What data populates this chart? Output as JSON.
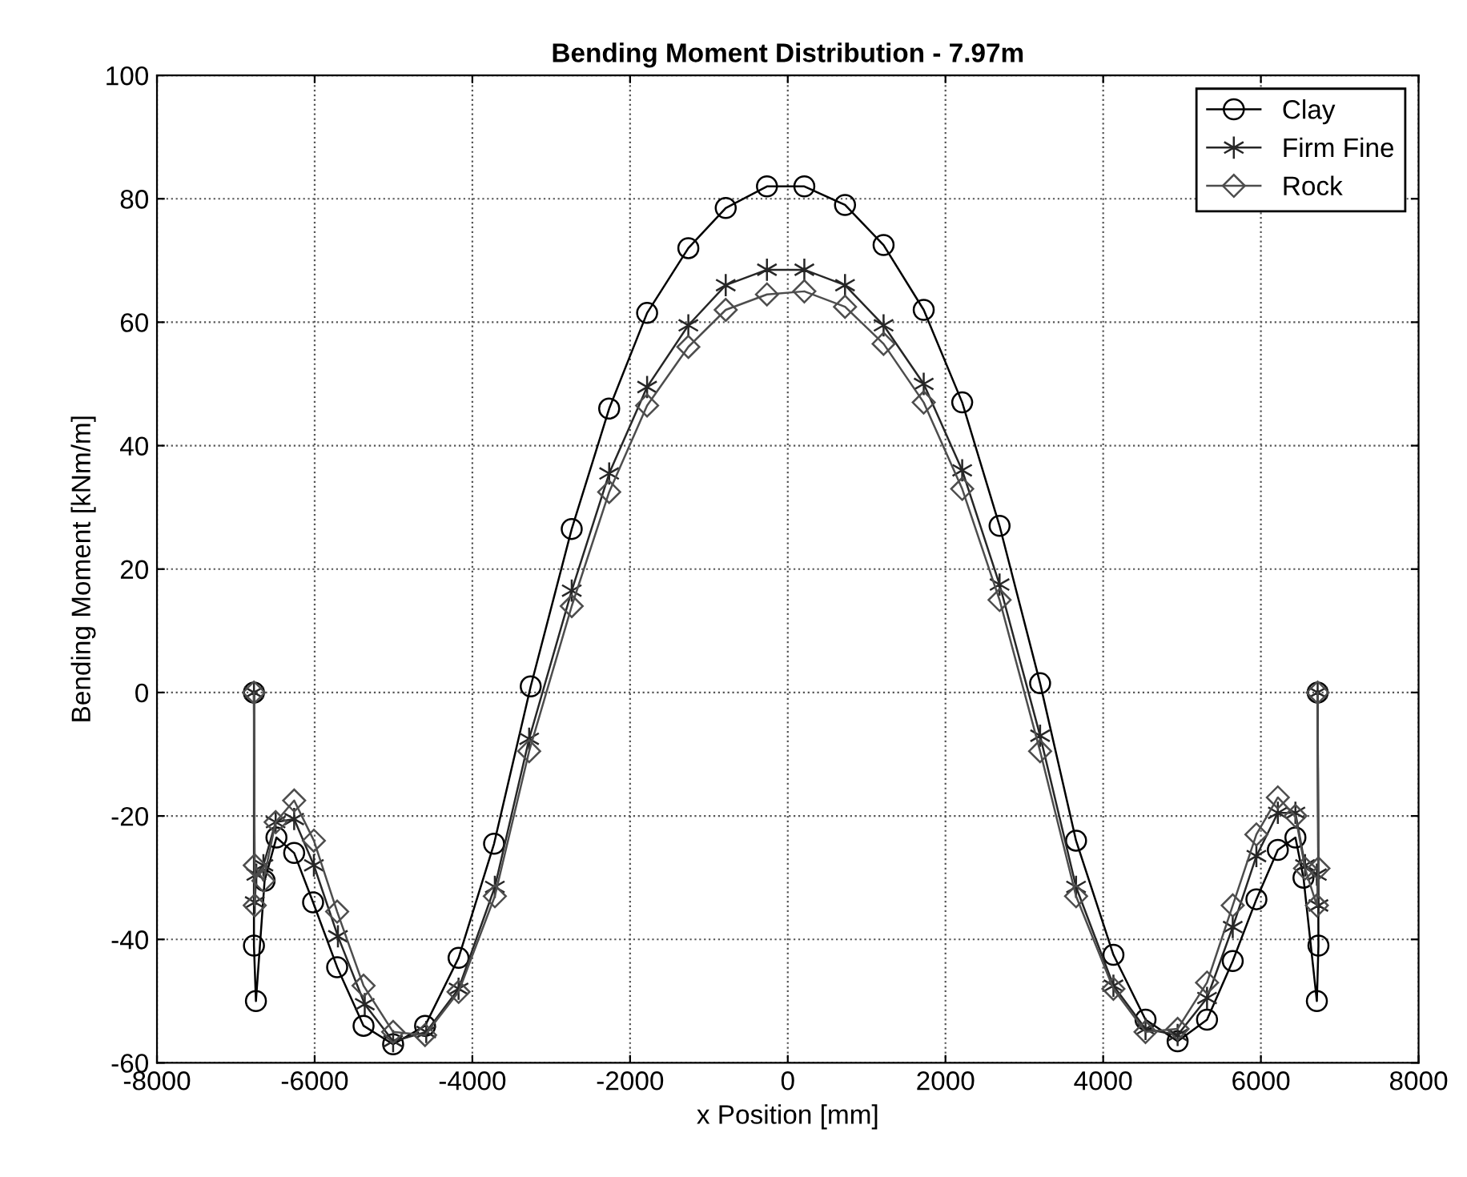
{
  "chart_data": {
    "type": "line",
    "title": "Bending Moment Distribution - 7.97m",
    "xlabel": "x Position [mm]",
    "ylabel": "Bending Moment [kNm/m]",
    "xlim": [
      -8000,
      8000
    ],
    "xticks": [
      -8000,
      -6000,
      -4000,
      -2000,
      0,
      2000,
      4000,
      6000,
      8000
    ],
    "ylim": [
      -60,
      100
    ],
    "yticks": [
      -60,
      -40,
      -20,
      0,
      20,
      40,
      60,
      80,
      100
    ],
    "grid": true,
    "legend": "top right",
    "line_style": "solid",
    "series": [
      {
        "name": "Clay",
        "color": "#000000",
        "marker": "circle",
        "x": [
          -6770,
          -6770,
          -6745,
          -6635,
          -6485,
          -6260,
          -6020,
          -5715,
          -5380,
          -5005,
          -4600,
          -4175,
          -3725,
          -3260,
          -2740,
          -2265,
          -1784,
          -1261,
          -787,
          -264,
          210,
          726,
          1215,
          1724,
          2212,
          2686,
          3200,
          3656,
          4130,
          4537,
          4944,
          5317,
          5643,
          5943,
          6215,
          6438,
          6540,
          6710,
          6730,
          6720
        ],
        "values": [
          0,
          -41,
          -50,
          -30.5,
          -23.5,
          -26,
          -34,
          -44.5,
          -54,
          -57,
          -54,
          -43,
          -24.5,
          1,
          26.5,
          46,
          61.5,
          72,
          78.5,
          82,
          82,
          79,
          72.5,
          62,
          47,
          27,
          1.5,
          -24,
          -42.5,
          -53,
          -56.5,
          -53,
          -43.5,
          -33.5,
          -25.5,
          -23.5,
          -30,
          -50,
          -41,
          0
        ]
      },
      {
        "name": "Firm Fine",
        "color": "#262626",
        "marker": "cross",
        "x": [
          -6770,
          -6760,
          -6740,
          -6650,
          -6495,
          -6260,
          -6010,
          -5705,
          -5365,
          -5005,
          -4585,
          -4175,
          -3715,
          -3280,
          -2740,
          -2265,
          -1784,
          -1261,
          -787,
          -264,
          210,
          726,
          1215,
          1724,
          2212,
          2686,
          3200,
          3656,
          4130,
          4537,
          4944,
          5317,
          5643,
          5943,
          6215,
          6438,
          6560,
          6710,
          6730,
          6720
        ],
        "values": [
          0,
          -34,
          -29.5,
          -28,
          -21,
          -20.5,
          -28,
          -39.5,
          -50.5,
          -56.5,
          -55,
          -48,
          -31.5,
          -7.5,
          16.5,
          35.5,
          49.5,
          59.5,
          66,
          68.5,
          68.5,
          66,
          59.5,
          50,
          36,
          17.5,
          -7,
          -31.5,
          -47.5,
          -54.5,
          -55.5,
          -49.5,
          -38,
          -26.5,
          -19.5,
          -19.5,
          -28,
          -29.5,
          -34.5,
          0
        ]
      },
      {
        "name": "Rock",
        "color": "#4d4d4d",
        "marker": "diamond",
        "x": [
          -6770,
          -6760,
          -6760,
          -6650,
          -6495,
          -6260,
          -6010,
          -5715,
          -5380,
          -5005,
          -4600,
          -4175,
          -3715,
          -3280,
          -2740,
          -2265,
          -1784,
          -1261,
          -787,
          -264,
          210,
          726,
          1215,
          1724,
          2212,
          2686,
          3200,
          3656,
          4130,
          4537,
          4944,
          5317,
          5643,
          5943,
          6215,
          6438,
          6560,
          6710,
          6730,
          6720
        ],
        "values": [
          0,
          -34.5,
          -28,
          -30.5,
          -21,
          -17.5,
          -24,
          -35.5,
          -47.5,
          -55,
          -55.5,
          -48.5,
          -33,
          -9.5,
          14,
          32.5,
          46.5,
          56,
          62,
          64.5,
          65,
          62.5,
          56.5,
          47,
          33,
          15,
          -9.5,
          -33,
          -48,
          -55,
          -54.5,
          -47,
          -34.5,
          -23,
          -17,
          -20,
          -28.5,
          -34.5,
          -28.5,
          0
        ]
      }
    ]
  }
}
